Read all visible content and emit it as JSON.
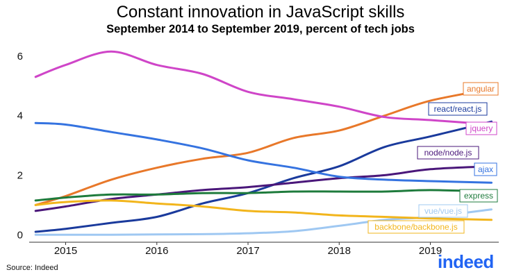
{
  "chart_data": {
    "type": "line",
    "title": "Constant innovation in JavaScript skills",
    "subtitle": "September 2014 to September 2019, percent of tech jobs",
    "xlabel": "",
    "ylabel": "",
    "x": [
      2014.67,
      2015.0,
      2015.5,
      2016.0,
      2016.5,
      2017.0,
      2017.5,
      2018.0,
      2018.5,
      2019.0,
      2019.67
    ],
    "x_tick_labels": [
      "2015",
      "2016",
      "2017",
      "2018",
      "2019"
    ],
    "x_ticks": [
      2015,
      2016,
      2017,
      2018,
      2019
    ],
    "y_ticks": [
      0,
      2,
      4,
      6
    ],
    "xlim": [
      2014.6,
      2019.75
    ],
    "ylim": [
      -0.25,
      6.6
    ],
    "grid": false,
    "series": [
      {
        "name": "angular",
        "color": "#e8782a",
        "values": [
          1.0,
          1.3,
          1.85,
          2.25,
          2.55,
          2.75,
          3.25,
          3.5,
          4.0,
          4.5,
          4.9
        ]
      },
      {
        "name": "react/react.js",
        "color": "#1a3a9c",
        "values": [
          0.1,
          0.2,
          0.4,
          0.6,
          1.05,
          1.4,
          1.9,
          2.3,
          2.95,
          3.3,
          3.8
        ]
      },
      {
        "name": "jquery",
        "color": "#cf45c8",
        "values": [
          5.3,
          5.7,
          6.15,
          5.7,
          5.4,
          4.8,
          4.55,
          4.3,
          3.95,
          3.85,
          3.7
        ]
      },
      {
        "name": "node/node.js",
        "color": "#4a177a",
        "values": [
          0.8,
          0.95,
          1.2,
          1.35,
          1.5,
          1.6,
          1.75,
          1.9,
          2.0,
          2.2,
          2.3
        ]
      },
      {
        "name": "ajax",
        "color": "#3573e0",
        "values": [
          3.75,
          3.7,
          3.45,
          3.2,
          2.9,
          2.5,
          2.25,
          1.95,
          1.85,
          1.8,
          1.75
        ]
      },
      {
        "name": "express",
        "color": "#1e7b3c",
        "values": [
          1.15,
          1.25,
          1.35,
          1.35,
          1.4,
          1.4,
          1.45,
          1.45,
          1.45,
          1.5,
          1.45
        ]
      },
      {
        "name": "vue/vue.js",
        "color": "#9fc8f2",
        "values": [
          0.0,
          0.0,
          0.0,
          0.01,
          0.02,
          0.05,
          0.12,
          0.3,
          0.5,
          0.6,
          0.85
        ]
      },
      {
        "name": "backbone/backbone.js",
        "color": "#f2b51c",
        "values": [
          1.0,
          1.1,
          1.15,
          1.05,
          0.95,
          0.8,
          0.75,
          0.65,
          0.6,
          0.55,
          0.5
        ]
      }
    ]
  },
  "labels": {
    "angular": "angular",
    "react": "react/react.js",
    "jquery": "jquery",
    "node": "node/node.js",
    "ajax": "ajax",
    "express": "express",
    "vue": "vue/vue.js",
    "backbone": "backbone/backbone.js"
  },
  "source": "Source: Indeed",
  "logo": "indeed",
  "colors": {
    "logo": "#2164f3"
  }
}
